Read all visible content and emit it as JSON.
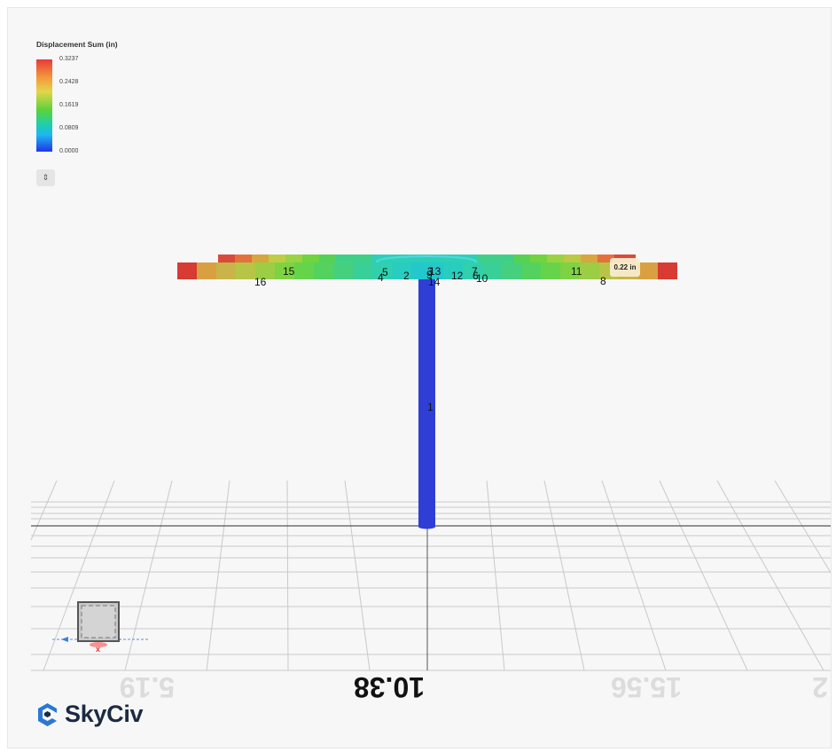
{
  "legend": {
    "title": "Displacement Sum (in)",
    "ticks": [
      "0.3237",
      "0.2428",
      "0.1619",
      "0.0809",
      "0.0000"
    ],
    "colors": {
      "max": "#e53b3b",
      "mid": "#5ad23a",
      "min": "#2233e6"
    }
  },
  "toggle_icon": "⇕",
  "tooltip": {
    "text": "0.22 in"
  },
  "node_labels": [
    "16",
    "15",
    "5",
    "4",
    "2",
    "9",
    "3",
    "13",
    "14",
    "12",
    "7",
    "6",
    "10",
    "11",
    "8",
    "1"
  ],
  "axis_labels": [
    "5.19",
    "10.38",
    "15.56",
    "2"
  ],
  "viewcube": {
    "axis_label": "x",
    "icon": "view-cube-icon"
  },
  "brand": {
    "name": "SkyCiv",
    "icon": "skyciv-logo-icon"
  },
  "column": {
    "color": "#2f3fd6"
  }
}
